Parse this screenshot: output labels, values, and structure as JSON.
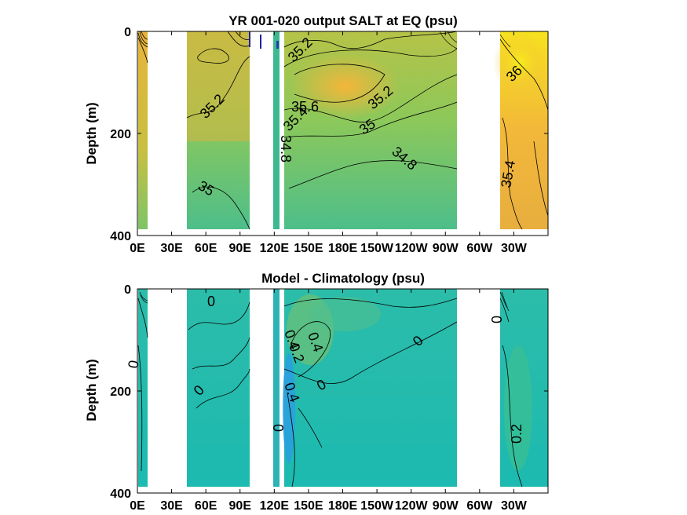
{
  "chart_data": [
    {
      "type": "heatmap",
      "title": "YR 001-020 output SALT at EQ (psu)",
      "xlabel": "",
      "ylabel": "Depth (m)",
      "x_ticklabels": [
        "0E",
        "30E",
        "60E",
        "90E",
        "120E",
        "150E",
        "180E",
        "150W",
        "120W",
        "90W",
        "60W",
        "30W"
      ],
      "x_range_deg_east": [
        0,
        360
      ],
      "y_ticklabels": [
        "0",
        "200",
        "400"
      ],
      "ylim": [
        400,
        0
      ],
      "colors": {
        "low": "#3cb7a0",
        "mid": "#8cc85a",
        "high": "#f5c030",
        "max": "#f6e41e"
      },
      "contour_labels": [
        "35.2",
        "35.2",
        "35.6",
        "35.4",
        "35.2",
        "35",
        "34.8",
        "34.8",
        "35",
        "36",
        "35.4"
      ]
    },
    {
      "type": "heatmap",
      "title": "Model - Climatology (psu)",
      "xlabel": "",
      "ylabel": "Depth (m)",
      "x_ticklabels": [
        "0E",
        "30E",
        "60E",
        "90E",
        "120E",
        "150E",
        "180E",
        "150W",
        "120W",
        "90W",
        "60W",
        "30W"
      ],
      "x_range_deg_east": [
        0,
        360
      ],
      "y_ticklabels": [
        "0",
        "200",
        "400"
      ],
      "ylim": [
        400,
        0
      ],
      "colors": {
        "base": "#1cbab0",
        "pos": "#5ec288",
        "neg": "#2a9fe0"
      },
      "contour_labels": [
        "0",
        "0",
        "0",
        "0.4",
        "0.4",
        "0.2",
        "0",
        "0",
        "0.4",
        "0",
        "0",
        "0.2"
      ]
    }
  ]
}
